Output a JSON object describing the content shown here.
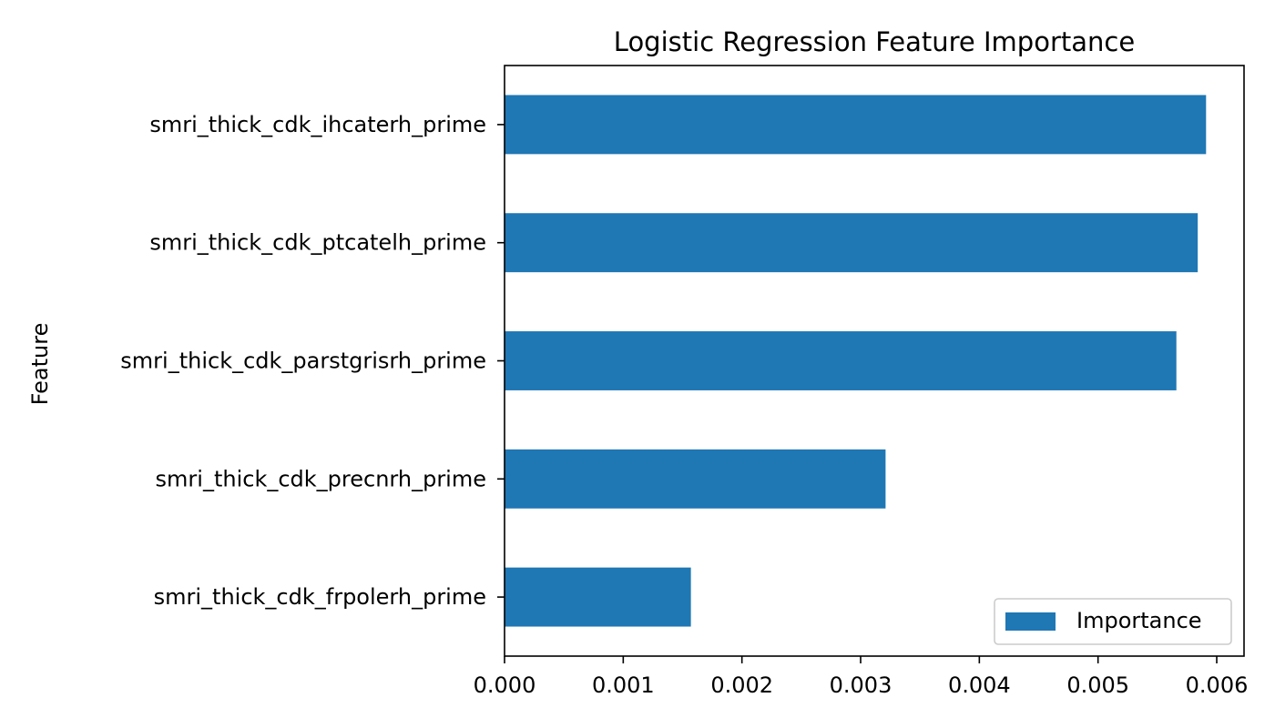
{
  "chart_data": {
    "type": "bar",
    "orientation": "horizontal",
    "title": "Logistic Regression Feature Importance",
    "xlabel": "",
    "ylabel": "Feature",
    "xlim": [
      0,
      0.00623
    ],
    "x_ticks": [
      "0.000",
      "0.001",
      "0.002",
      "0.003",
      "0.004",
      "0.005",
      "0.006"
    ],
    "x_tick_values": [
      0,
      0.001,
      0.002,
      0.003,
      0.004,
      0.005,
      0.006
    ],
    "categories": [
      "smri_thick_cdk_ihcaterh_prime",
      "smri_thick_cdk_ptcatelh_prime",
      "smri_thick_cdk_parstgrisrh_prime",
      "smri_thick_cdk_precnrh_prime",
      "smri_thick_cdk_frpolerh_prime"
    ],
    "series": [
      {
        "name": "Importance",
        "values": [
          0.00591,
          0.00584,
          0.00566,
          0.00321,
          0.00157
        ],
        "color": "#1f77b4"
      }
    ],
    "legend": {
      "position": "lower-right",
      "entries": [
        "Importance"
      ]
    },
    "grid": false
  }
}
